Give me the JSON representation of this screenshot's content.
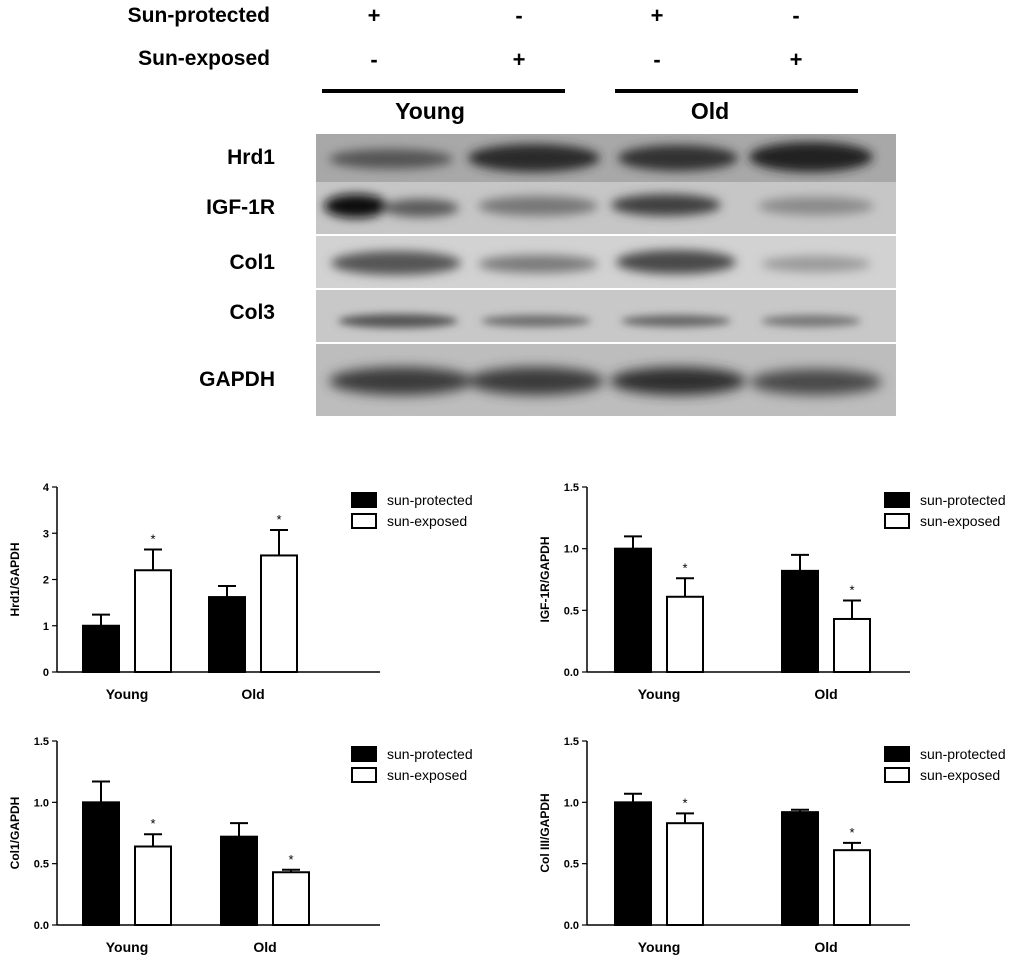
{
  "blot": {
    "conditions": [
      {
        "label": "Sun-protected",
        "signs": [
          "+",
          "-",
          "+",
          "-"
        ]
      },
      {
        "label": "Sun-exposed",
        "signs": [
          "-",
          "+",
          "-",
          "+"
        ]
      }
    ],
    "groups": [
      "Young",
      "Old"
    ],
    "bands": [
      "Hrd1",
      "IGF-1R",
      "Col1",
      "Col3",
      "GAPDH"
    ]
  },
  "chart_data": [
    {
      "type": "bar",
      "categories": [
        "Young",
        "Old"
      ],
      "ylabel": "Hrd1/GAPDH",
      "ylim": [
        0,
        4
      ],
      "yticks": [
        "0",
        "1",
        "2",
        "3",
        "4"
      ],
      "series": [
        {
          "name": "sun-protected",
          "values": [
            1.0,
            1.62
          ],
          "errors": [
            0.24,
            0.24
          ],
          "color": "#000000"
        },
        {
          "name": "sun-exposed",
          "values": [
            2.2,
            2.52
          ],
          "errors": [
            0.45,
            0.55
          ],
          "color": "#ffffff"
        }
      ],
      "significance": [
        [
          "",
          "*"
        ],
        [
          "",
          "*"
        ]
      ],
      "legend": "top-right"
    },
    {
      "type": "bar",
      "categories": [
        "Young",
        "Old"
      ],
      "ylabel": "IGF-1R/GAPDH",
      "ylim": [
        0,
        1.5
      ],
      "yticks": [
        "0.0",
        "0.5",
        "1.0",
        "1.5"
      ],
      "series": [
        {
          "name": "sun-protected",
          "values": [
            1.0,
            0.82
          ],
          "errors": [
            0.1,
            0.13
          ],
          "color": "#000000"
        },
        {
          "name": "sun-exposed",
          "values": [
            0.61,
            0.43
          ],
          "errors": [
            0.15,
            0.15
          ],
          "color": "#ffffff"
        }
      ],
      "significance": [
        [
          "",
          "*"
        ],
        [
          "",
          "*"
        ]
      ],
      "legend": "top-right"
    },
    {
      "type": "bar",
      "categories": [
        "Young",
        "Old"
      ],
      "ylabel": "Col1/GAPDH",
      "ylim": [
        0,
        1.5
      ],
      "yticks": [
        "0.0",
        "0.5",
        "1.0",
        "1.5"
      ],
      "series": [
        {
          "name": "sun-protected",
          "values": [
            1.0,
            0.72
          ],
          "errors": [
            0.17,
            0.11
          ],
          "color": "#000000"
        },
        {
          "name": "sun-exposed",
          "values": [
            0.64,
            0.43
          ],
          "errors": [
            0.1,
            0.02
          ],
          "color": "#ffffff"
        }
      ],
      "significance": [
        [
          "",
          "*"
        ],
        [
          "",
          "*"
        ]
      ],
      "legend": "top-right"
    },
    {
      "type": "bar",
      "categories": [
        "Young",
        "Old"
      ],
      "ylabel": "Col III/GAPDH",
      "ylim": [
        0,
        1.5
      ],
      "yticks": [
        "0.0",
        "0.5",
        "1.0",
        "1.5"
      ],
      "series": [
        {
          "name": "sun-protected",
          "values": [
            1.0,
            0.92
          ],
          "errors": [
            0.07,
            0.02
          ],
          "color": "#000000"
        },
        {
          "name": "sun-exposed",
          "values": [
            0.83,
            0.61
          ],
          "errors": [
            0.08,
            0.06
          ],
          "color": "#ffffff"
        }
      ],
      "significance": [
        [
          "",
          "*"
        ],
        [
          "",
          "*"
        ]
      ],
      "legend": "top-right"
    }
  ]
}
